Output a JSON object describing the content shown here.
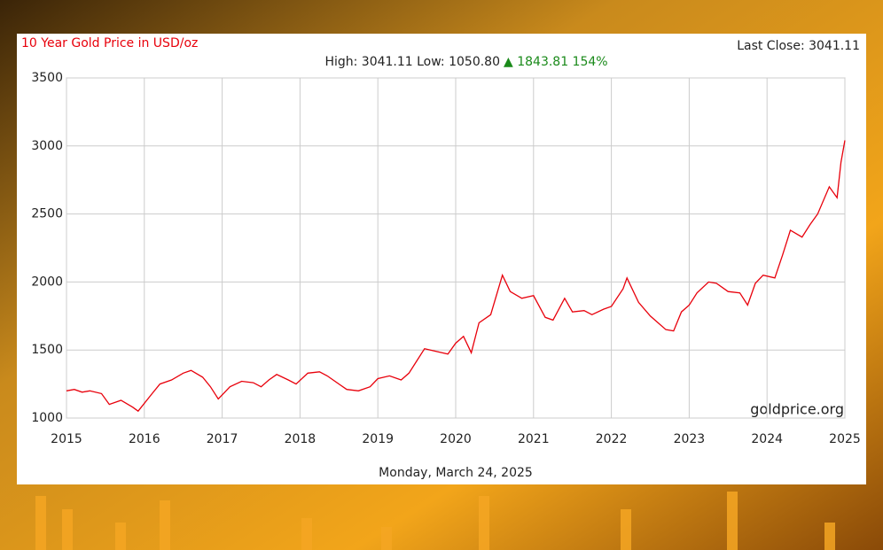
{
  "chart_data": {
    "type": "line",
    "title": "10 Year Gold Price in USD/oz",
    "last_close": "Last Close: 3041.11",
    "high_low": "High: 3041.11 Low: 1050.80",
    "change": "▲ 1843.81 154%",
    "watermark": "goldprice.org",
    "date": "Monday, March 24, 2025",
    "color": "#e8000b",
    "x": [
      2015.0,
      2015.1,
      2015.2,
      2015.3,
      2015.45,
      2015.55,
      2015.7,
      2015.85,
      2015.92,
      2016.1,
      2016.2,
      2016.35,
      2016.5,
      2016.6,
      2016.75,
      2016.85,
      2016.95,
      2017.1,
      2017.25,
      2017.4,
      2017.5,
      2017.6,
      2017.7,
      2017.85,
      2017.95,
      2018.1,
      2018.25,
      2018.35,
      2018.5,
      2018.6,
      2018.75,
      2018.9,
      2019.0,
      2019.15,
      2019.3,
      2019.4,
      2019.5,
      2019.6,
      2019.75,
      2019.9,
      2020.0,
      2020.1,
      2020.2,
      2020.3,
      2020.45,
      2020.6,
      2020.7,
      2020.85,
      2021.0,
      2021.15,
      2021.25,
      2021.4,
      2021.5,
      2021.65,
      2021.75,
      2021.9,
      2022.0,
      2022.15,
      2022.2,
      2022.35,
      2022.5,
      2022.6,
      2022.7,
      2022.8,
      2022.9,
      2023.0,
      2023.1,
      2023.25,
      2023.35,
      2023.5,
      2023.65,
      2023.75,
      2023.85,
      2023.95,
      2024.1,
      2024.2,
      2024.3,
      2024.45,
      2024.55,
      2024.65,
      2024.8,
      2024.9,
      2024.95,
      2025.0
    ],
    "values": [
      1200,
      1210,
      1190,
      1200,
      1180,
      1100,
      1130,
      1080,
      1050.8,
      1180,
      1250,
      1280,
      1330,
      1350,
      1300,
      1230,
      1140,
      1230,
      1270,
      1260,
      1230,
      1280,
      1320,
      1280,
      1250,
      1330,
      1340,
      1310,
      1250,
      1210,
      1200,
      1230,
      1290,
      1310,
      1280,
      1330,
      1420,
      1510,
      1490,
      1470,
      1550,
      1600,
      1480,
      1700,
      1760,
      2050,
      1930,
      1880,
      1900,
      1740,
      1720,
      1880,
      1780,
      1790,
      1760,
      1800,
      1820,
      1950,
      2030,
      1850,
      1750,
      1700,
      1650,
      1640,
      1780,
      1830,
      1920,
      2000,
      1990,
      1930,
      1920,
      1830,
      1990,
      2050,
      2030,
      2200,
      2380,
      2330,
      2420,
      2500,
      2700,
      2620,
      2880,
      3041.11
    ],
    "xlim": [
      2015,
      2025
    ],
    "xticks": [
      2015,
      2016,
      2017,
      2018,
      2019,
      2020,
      2021,
      2022,
      2023,
      2024,
      2025
    ],
    "ylim": [
      1000,
      3500
    ],
    "yticks": [
      1000,
      1500,
      2000,
      2500,
      3000,
      3500
    ],
    "grid": true
  }
}
